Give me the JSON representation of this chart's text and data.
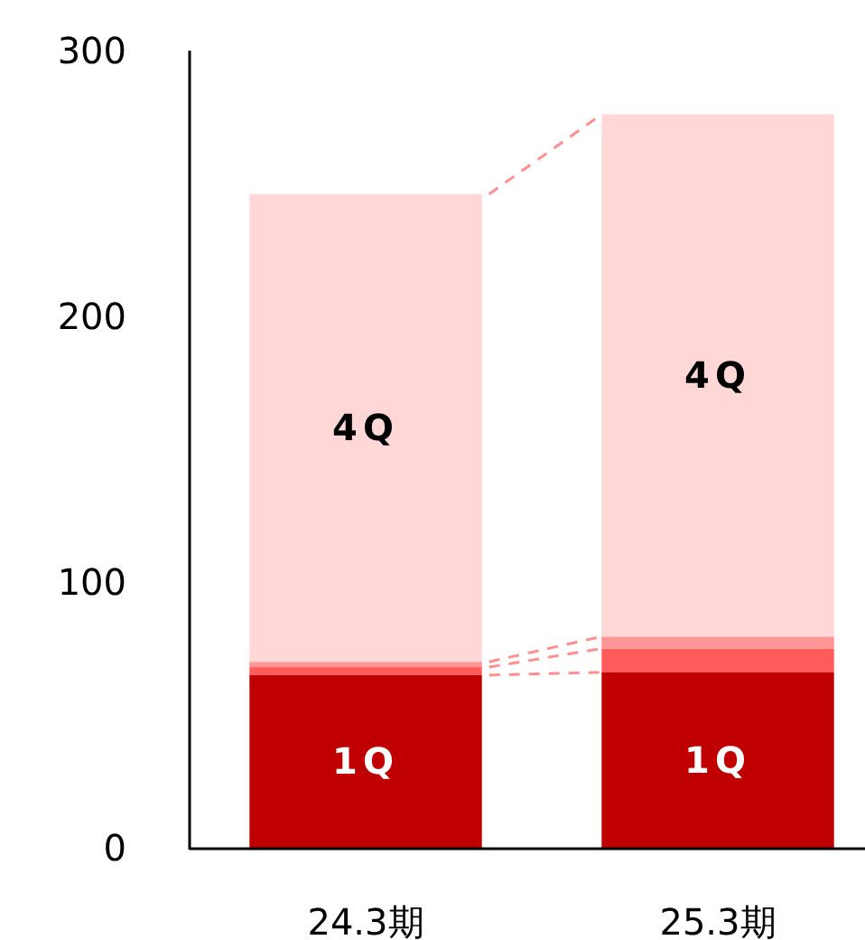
{
  "chart_data": {
    "type": "bar",
    "stacked": true,
    "categories": [
      "24.3期",
      "25.3期"
    ],
    "series": [
      {
        "name": "1Q",
        "color": "#c00000",
        "values": [
          65,
          66
        ]
      },
      {
        "color": "#ff5b5b",
        "values": [
          3,
          9
        ]
      },
      {
        "color": "#ff9595",
        "values": [
          2,
          4.5
        ]
      },
      {
        "name": "4Q",
        "color": "#ffd7d7",
        "values": [
          176,
          196.5
        ]
      }
    ],
    "ylim": [
      0,
      300
    ],
    "yticks": [
      0,
      100,
      200,
      300
    ],
    "grid": false
  }
}
